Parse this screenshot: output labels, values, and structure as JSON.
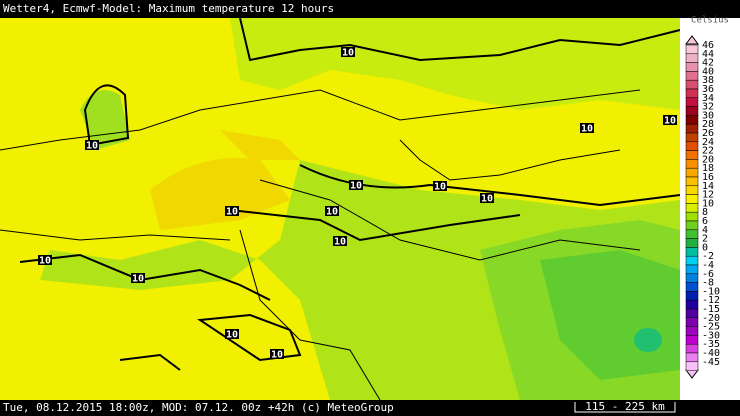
{
  "header": {
    "title": "Wetter4, Ecmwf-Model: Maximum temperature 12 hours"
  },
  "legend": {
    "unit": "Celsius",
    "entries": [
      {
        "label": 46,
        "color": "#f8c8d8"
      },
      {
        "label": 44,
        "color": "#f0b0c8"
      },
      {
        "label": 42,
        "color": "#e890b0"
      },
      {
        "label": 40,
        "color": "#e07090"
      },
      {
        "label": 38,
        "color": "#d85070"
      },
      {
        "label": 36,
        "color": "#d03050"
      },
      {
        "label": 34,
        "color": "#c01040"
      },
      {
        "label": 32,
        "color": "#a00020"
      },
      {
        "label": 30,
        "color": "#800000"
      },
      {
        "label": 28,
        "color": "#a02000"
      },
      {
        "label": 26,
        "color": "#c04000"
      },
      {
        "label": 24,
        "color": "#e05000"
      },
      {
        "label": 22,
        "color": "#f07000"
      },
      {
        "label": 20,
        "color": "#f89000"
      },
      {
        "label": 18,
        "color": "#f8a800"
      },
      {
        "label": 16,
        "color": "#f8c000"
      },
      {
        "label": 14,
        "color": "#f8d800"
      },
      {
        "label": 12,
        "color": "#f8f000"
      },
      {
        "label": 10,
        "color": "#d8f000"
      },
      {
        "label": 8,
        "color": "#a0e000"
      },
      {
        "label": 6,
        "color": "#70d020"
      },
      {
        "label": 4,
        "color": "#40c030"
      },
      {
        "label": 2,
        "color": "#20b040"
      },
      {
        "label": 0,
        "color": "#00c0a0"
      },
      {
        "label": -2,
        "color": "#00d0f0"
      },
      {
        "label": -4,
        "color": "#00a8f0"
      },
      {
        "label": -6,
        "color": "#0080e0"
      },
      {
        "label": -8,
        "color": "#0050d0"
      },
      {
        "label": -10,
        "color": "#0020b0"
      },
      {
        "label": -12,
        "color": "#2000a0"
      },
      {
        "label": -15,
        "color": "#5000a0"
      },
      {
        "label": -20,
        "color": "#8000b0"
      },
      {
        "label": -25,
        "color": "#a000c0"
      },
      {
        "label": -30,
        "color": "#c000d0"
      },
      {
        "label": -35,
        "color": "#d840e0"
      },
      {
        "label": -40,
        "color": "#e880f0"
      },
      {
        "label": -45,
        "color": "#f8c0f8"
      }
    ]
  },
  "map": {
    "contour_labels": [
      "10",
      "10",
      "10",
      "10",
      "10",
      "10",
      "10",
      "10",
      "10",
      "10",
      "10",
      "10",
      "10",
      "10"
    ]
  },
  "footer": {
    "info": "Tue, 08.12.2015 18:00z, MOD: 07.12. 00z +42h (c) MeteoGroup",
    "scale": "115 - 225 km"
  }
}
